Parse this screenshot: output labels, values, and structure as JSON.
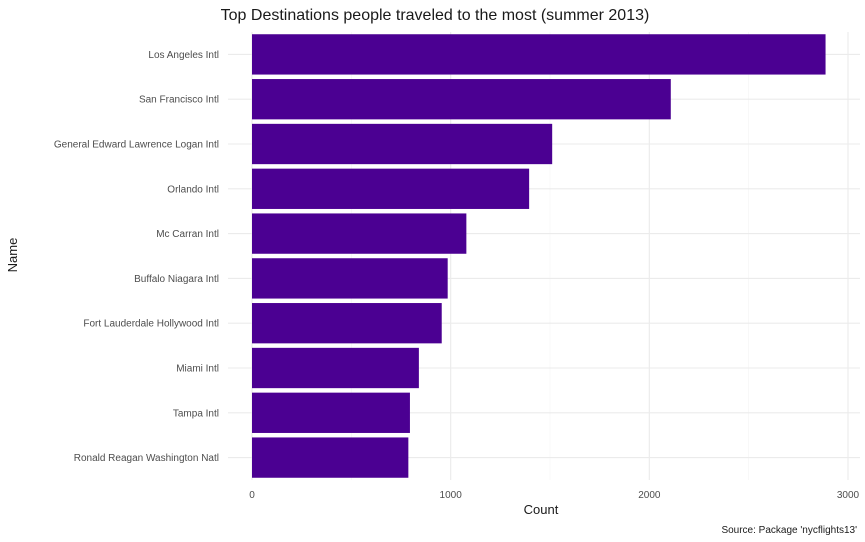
{
  "chart_data": {
    "type": "bar",
    "orientation": "horizontal",
    "title": "Top Destinations people traveled to the most (summer 2013)",
    "xlabel": "Count",
    "ylabel": "Name",
    "caption": "Source: Package 'nycflights13'",
    "categories": [
      "Los Angeles Intl",
      "San Francisco Intl",
      "General Edward Lawrence Logan Intl",
      "Orlando Intl",
      "Mc Carran Intl",
      "Buffalo Niagara Intl",
      "Fort Lauderdale Hollywood Intl",
      "Miami Intl",
      "Tampa Intl",
      "Ronald Reagan Washington Natl"
    ],
    "values": [
      2887,
      2108,
      1511,
      1395,
      1079,
      985,
      955,
      840,
      795,
      787
    ],
    "xlim": [
      0,
      3000
    ],
    "xticks": [
      0,
      1000,
      2000,
      3000
    ],
    "xtick_labels": [
      "0",
      "1000",
      "2000",
      "3000"
    ],
    "bar_color": "#4b0092",
    "grid": true
  }
}
